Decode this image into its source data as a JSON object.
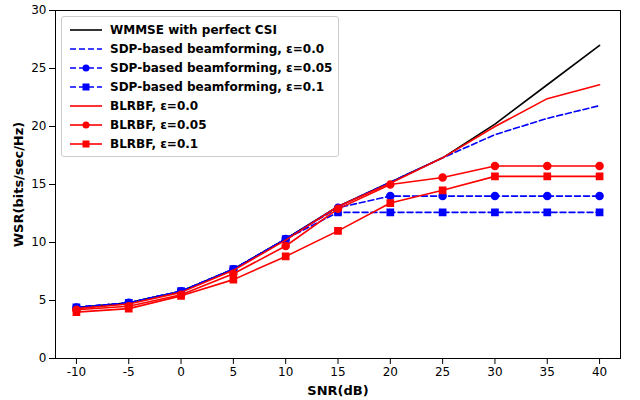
{
  "chart_data": {
    "type": "line",
    "x_label": "SNR(dB)",
    "y_label": "WSR(bits/sec/Hz)",
    "x": [
      -10,
      -5,
      0,
      5,
      10,
      15,
      20,
      25,
      30,
      35,
      40
    ],
    "xlim": [
      -12,
      42
    ],
    "xticks": [
      -10,
      -5,
      0,
      5,
      10,
      15,
      20,
      25,
      30,
      35,
      40
    ],
    "ylim": [
      0,
      30
    ],
    "yticks": [
      0,
      5,
      10,
      15,
      20,
      25,
      30
    ],
    "grid": false,
    "legend": "upper left",
    "series": [
      {
        "name": "WMMSE with perfect CSI",
        "color": "#000000",
        "line_style": "solid",
        "marker": "none",
        "values": [
          4.4,
          4.8,
          5.8,
          7.7,
          10.3,
          13.1,
          15.2,
          17.3,
          20.2,
          23.6,
          27.0
        ]
      },
      {
        "name": "SDP-based beamforming, ε=0.0",
        "color": "#0000ff",
        "line_style": "dashed",
        "marker": "none",
        "values": [
          4.4,
          4.8,
          5.8,
          7.7,
          10.3,
          13.1,
          15.2,
          17.3,
          19.3,
          20.7,
          21.8
        ]
      },
      {
        "name": "SDP-based beamforming, ε=0.05",
        "color": "#0000ff",
        "line_style": "dashed",
        "marker": "circle",
        "values": [
          4.4,
          4.8,
          5.8,
          7.7,
          10.3,
          13.0,
          14.0,
          14.0,
          14.0,
          14.0,
          14.0
        ]
      },
      {
        "name": "SDP-based beamforming, ε=0.1",
        "color": "#0000ff",
        "line_style": "dashed",
        "marker": "square",
        "values": [
          4.4,
          4.8,
          5.8,
          7.7,
          10.3,
          12.6,
          12.6,
          12.6,
          12.6,
          12.6,
          12.6
        ]
      },
      {
        "name": "BLRBF, ε=0.0",
        "color": "#ff0000",
        "line_style": "solid",
        "marker": "none",
        "values": [
          4.3,
          4.7,
          5.7,
          7.6,
          10.2,
          13.1,
          15.1,
          17.3,
          20.0,
          22.4,
          23.6
        ]
      },
      {
        "name": "BLRBF, ε=0.05",
        "color": "#ff0000",
        "line_style": "solid",
        "marker": "circle",
        "values": [
          4.2,
          4.5,
          5.5,
          7.3,
          9.7,
          12.9,
          15.0,
          15.6,
          16.6,
          16.6,
          16.6
        ]
      },
      {
        "name": "BLRBF, ε=0.1",
        "color": "#ff0000",
        "line_style": "solid",
        "marker": "square",
        "values": [
          4.0,
          4.3,
          5.4,
          6.8,
          8.8,
          11.0,
          13.4,
          14.5,
          15.7,
          15.7,
          15.7
        ]
      }
    ]
  }
}
